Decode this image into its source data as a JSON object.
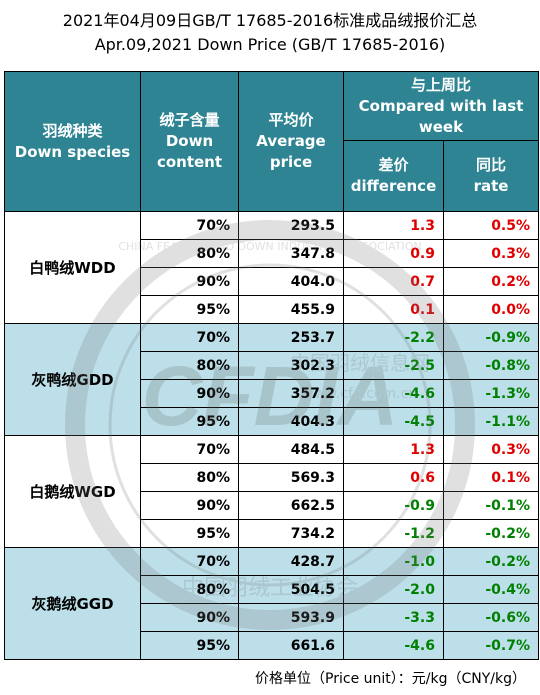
{
  "title_cn": "2021年04月09日GB/T 17685-2016标准成品绒报价汇总",
  "title_en": "Apr.09,2021 Down Price (GB/T 17685-2016)",
  "headers": {
    "species_cn": "羽绒种类",
    "species_en": "Down species",
    "content_cn": "绒子含量",
    "content_en1": "Down",
    "content_en2": "content",
    "price_cn": "平均价",
    "price_en1": "Average",
    "price_en2": "price",
    "compare_cn": "与上周比",
    "compare_en1": "Compared with last",
    "compare_en2": "week",
    "diff_cn": "差价",
    "diff_en": "difference",
    "rate_cn": "同比",
    "rate_en": "rate"
  },
  "groups": [
    {
      "species": "白鸭绒WDD",
      "rows": [
        {
          "content": "70%",
          "price": "293.5",
          "diff": "1.3",
          "rate": "0.5%",
          "up": true
        },
        {
          "content": "80%",
          "price": "347.8",
          "diff": "0.9",
          "rate": "0.3%",
          "up": true
        },
        {
          "content": "90%",
          "price": "404.0",
          "diff": "0.7",
          "rate": "0.2%",
          "up": true
        },
        {
          "content": "95%",
          "price": "455.9",
          "diff": "0.1",
          "rate": "0.0%",
          "up": true
        }
      ]
    },
    {
      "species": "灰鸭绒GDD",
      "rows": [
        {
          "content": "70%",
          "price": "253.7",
          "diff": "-2.2",
          "rate": "-0.9%",
          "up": false
        },
        {
          "content": "80%",
          "price": "302.3",
          "diff": "-2.5",
          "rate": "-0.8%",
          "up": false
        },
        {
          "content": "90%",
          "price": "357.2",
          "diff": "-4.6",
          "rate": "-1.3%",
          "up": false
        },
        {
          "content": "95%",
          "price": "404.3",
          "diff": "-4.5",
          "rate": "-1.1%",
          "up": false
        }
      ]
    },
    {
      "species": "白鹅绒WGD",
      "rows": [
        {
          "content": "70%",
          "price": "484.5",
          "diff": "1.3",
          "rate": "0.3%",
          "up": true
        },
        {
          "content": "80%",
          "price": "569.3",
          "diff": "0.6",
          "rate": "0.1%",
          "up": true
        },
        {
          "content": "90%",
          "price": "662.5",
          "diff": "-0.9",
          "rate": "-0.1%",
          "up": false
        },
        {
          "content": "95%",
          "price": "734.2",
          "diff": "-1.2",
          "rate": "-0.2%",
          "up": false
        }
      ]
    },
    {
      "species": "灰鹅绒GGD",
      "rows": [
        {
          "content": "70%",
          "price": "428.7",
          "diff": "-1.0",
          "rate": "-0.2%",
          "up": false
        },
        {
          "content": "80%",
          "price": "504.5",
          "diff": "-2.0",
          "rate": "-0.4%",
          "up": false
        },
        {
          "content": "90%",
          "price": "593.9",
          "diff": "-3.3",
          "rate": "-0.6%",
          "up": false
        },
        {
          "content": "95%",
          "price": "661.6",
          "diff": "-4.6",
          "rate": "-0.7%",
          "up": false
        }
      ]
    }
  ],
  "footer": "价格单位（Price unit）：元/kg（CNY/kg）",
  "watermark": {
    "ring_text": "CHINA FEATHER AND DOWN INDUSTRIAL ASSOCIATION",
    "logo_text": "CFDIA",
    "site_text": "中国羽绒信息网",
    "url_text": "www.cfd.com.cn",
    "bottom_text": "中国羽绒工业协会"
  },
  "colors": {
    "header": "#2e8493",
    "band": "#bcdfe9",
    "up": "#e00000",
    "down": "#008000"
  }
}
